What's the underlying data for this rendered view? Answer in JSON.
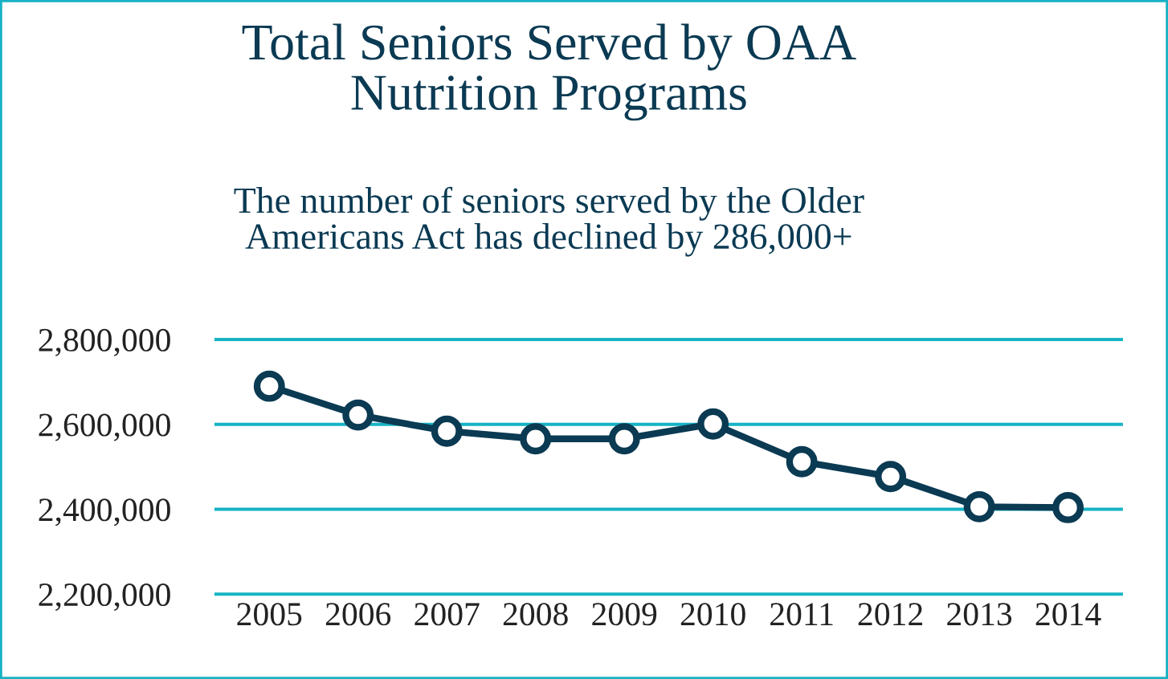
{
  "chart_data": {
    "type": "line",
    "title": "Total Seniors Served by OAA\nNutrition Programs",
    "subtitle": "The number of seniors served by the Older\nAmericans Act has declined by 286,000+",
    "categories": [
      "2005",
      "2006",
      "2007",
      "2008",
      "2009",
      "2010",
      "2011",
      "2012",
      "2013",
      "2014"
    ],
    "series": [
      {
        "color": "#0b3a53",
        "values": [
          2690000,
          2622000,
          2584000,
          2566000,
          2566000,
          2601000,
          2512000,
          2477000,
          2406000,
          2404000
        ]
      }
    ],
    "ylim": [
      2200000,
      2800000
    ],
    "yticks": [
      {
        "value": 2200000,
        "label": "2,200,000"
      },
      {
        "value": 2400000,
        "label": "2,400,000"
      },
      {
        "value": 2600000,
        "label": "2,600,000"
      },
      {
        "value": 2800000,
        "label": "2,800,000"
      }
    ],
    "grid": "y",
    "marker": "circle",
    "line_style": "solid"
  }
}
